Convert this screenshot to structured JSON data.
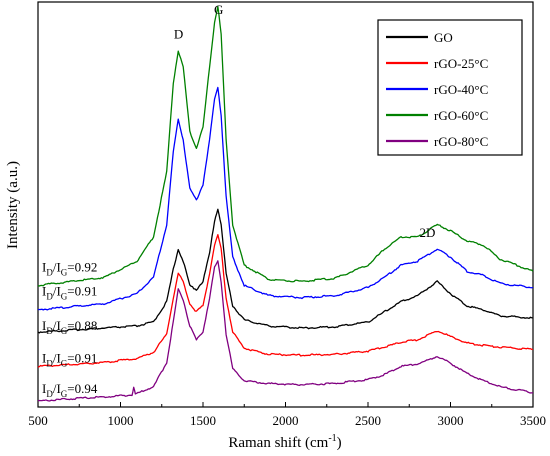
{
  "chart_data": {
    "type": "line",
    "title": "",
    "xlabel": "Raman shift (cm",
    "xlabel_sup": "-1",
    "xlabel_close": ")",
    "ylabel": "Intensity (a.u.)",
    "xlim": [
      500,
      3500
    ],
    "ylim": [
      0,
      100
    ],
    "x_ticks": [
      "500",
      "1000",
      "1500",
      "2000",
      "2500",
      "3000",
      "3500"
    ],
    "grid": false,
    "legend_position": "top-right",
    "peak_labels": [
      {
        "text": "D",
        "x": 1352,
        "y": 91
      },
      {
        "text": "G",
        "x": 1595,
        "y": 97
      },
      {
        "text": "2D",
        "x": 2860,
        "y": 42
      }
    ],
    "series": [
      {
        "name": "GO",
        "color": "#000000",
        "ratio_text": "=0.88",
        "ratio_level": 19,
        "x": [
          500,
          900,
          1100,
          1200,
          1280,
          1320,
          1350,
          1380,
          1420,
          1460,
          1500,
          1540,
          1570,
          1590,
          1610,
          1640,
          1680,
          1750,
          1900,
          2100,
          2300,
          2500,
          2600,
          2700,
          2800,
          2920,
          3000,
          3100,
          3200,
          3300,
          3500
        ],
        "y": [
          18.5,
          19.5,
          20,
          21,
          26,
          34,
          39,
          36,
          30,
          29,
          31,
          38,
          46,
          49,
          45,
          33,
          25,
          21.5,
          20,
          19.5,
          19.8,
          21,
          23.5,
          26,
          27.5,
          31,
          28,
          25,
          24,
          22.5,
          22
        ]
      },
      {
        "name": "rGO-25°C",
        "color": "#ff0000",
        "ratio_text": "=0.91",
        "ratio_level": 11,
        "x": [
          500,
          900,
          1100,
          1200,
          1280,
          1320,
          1350,
          1380,
          1420,
          1460,
          1500,
          1540,
          1570,
          1590,
          1610,
          1640,
          1680,
          1750,
          1900,
          2100,
          2300,
          2500,
          2600,
          2700,
          2800,
          2920,
          3000,
          3100,
          3200,
          3300,
          3500
        ],
        "y": [
          10,
          11,
          12,
          13.5,
          18,
          27,
          33,
          31,
          25.5,
          23.5,
          25,
          33,
          40,
          42.5,
          39,
          27,
          18.5,
          14.5,
          13,
          12.8,
          13,
          13.8,
          14.8,
          16,
          16.6,
          18.8,
          17.4,
          15.8,
          15.2,
          14.8,
          14.2
        ]
      },
      {
        "name": "rGO-40°C",
        "color": "#0000ff",
        "ratio_text": "=0.91",
        "ratio_level": 27.5,
        "x": [
          500,
          900,
          1100,
          1200,
          1280,
          1320,
          1350,
          1380,
          1420,
          1460,
          1500,
          1540,
          1570,
          1590,
          1610,
          1640,
          1680,
          1750,
          1900,
          2100,
          2300,
          2500,
          2600,
          2700,
          2800,
          2920,
          3000,
          3100,
          3200,
          3300,
          3500
        ],
        "y": [
          24,
          25.5,
          28,
          32,
          45,
          63,
          71,
          66,
          54,
          51,
          55,
          66,
          76,
          79,
          72,
          52,
          37,
          30,
          27.5,
          27,
          27.5,
          29.5,
          32,
          35,
          36,
          39,
          37,
          33.5,
          32.5,
          30.5,
          29.5
        ]
      },
      {
        "name": "rGO-60°C",
        "color": "#008000",
        "ratio_text": "=0.92",
        "ratio_level": 33.5,
        "x": [
          500,
          900,
          1100,
          1200,
          1280,
          1320,
          1350,
          1380,
          1420,
          1460,
          1500,
          1540,
          1570,
          1590,
          1610,
          1640,
          1680,
          1750,
          1900,
          2100,
          2300,
          2500,
          2600,
          2700,
          2800,
          2920,
          3000,
          3100,
          3200,
          3300,
          3500
        ],
        "y": [
          30,
          32,
          36,
          42,
          58,
          80,
          88,
          84,
          68,
          64,
          69,
          84,
          95,
          99,
          92,
          66,
          45,
          35,
          31.5,
          31,
          31.8,
          35,
          39,
          42,
          42,
          45,
          43.5,
          41,
          40,
          36.5,
          33.5
        ]
      },
      {
        "name": "rGO-80°C",
        "color": "#800080",
        "ratio_text": "=0.94",
        "ratio_level": 3.5,
        "x": [
          500,
          900,
          1070,
          1080,
          1090,
          1200,
          1280,
          1320,
          1350,
          1380,
          1420,
          1460,
          1500,
          1540,
          1570,
          1590,
          1610,
          1640,
          1680,
          1750,
          1900,
          2100,
          2300,
          2500,
          2600,
          2700,
          2800,
          2920,
          3000,
          3100,
          3200,
          3300,
          3500
        ],
        "y": [
          1.5,
          2.5,
          3,
          5,
          3.2,
          5,
          11,
          21,
          29,
          26.5,
          20,
          16.5,
          18.5,
          27,
          34.5,
          36,
          31,
          18,
          9.5,
          6.5,
          5.8,
          5.5,
          5.8,
          6.8,
          8,
          10,
          10.6,
          12.5,
          10.8,
          8.3,
          6.5,
          5,
          3.5
        ]
      }
    ]
  }
}
